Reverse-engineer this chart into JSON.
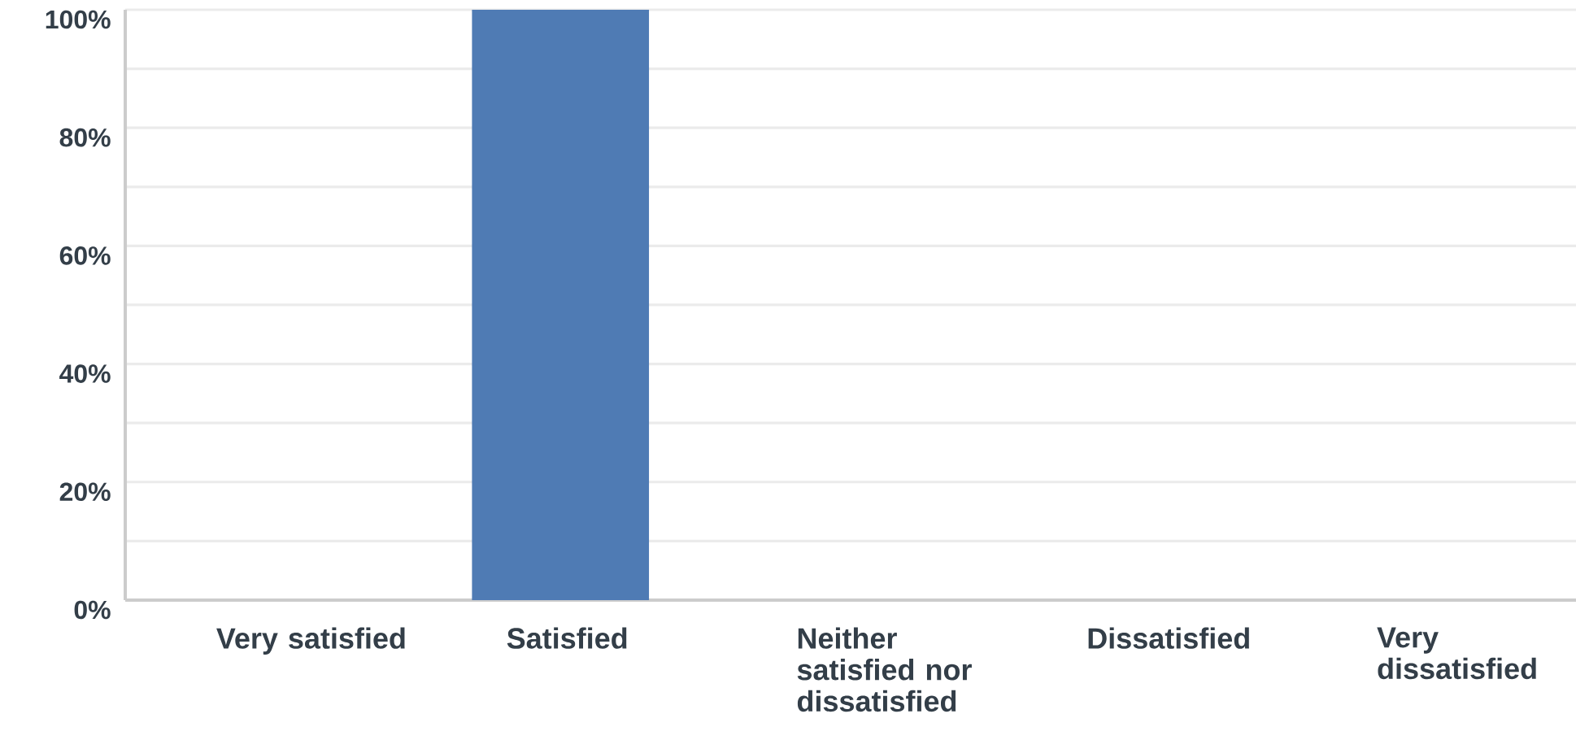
{
  "chart_data": {
    "type": "bar",
    "categories": [
      "Very satisfied",
      "Satisfied",
      "Neither satisfied nor dissatisfied",
      "Dissatisfied",
      "Very dissatisfied"
    ],
    "values": [
      0,
      100,
      0,
      0,
      0
    ],
    "color": "#4f7bb4",
    "ylim": [
      0,
      100
    ],
    "yticks": [
      {
        "value": 0,
        "label": "0%"
      },
      {
        "value": 10,
        "label": null
      },
      {
        "value": 20,
        "label": "20%"
      },
      {
        "value": 30,
        "label": null
      },
      {
        "value": 40,
        "label": "40%"
      },
      {
        "value": 50,
        "label": null
      },
      {
        "value": 60,
        "label": "60%"
      },
      {
        "value": 70,
        "label": null
      },
      {
        "value": 80,
        "label": "80%"
      },
      {
        "value": 90,
        "label": null
      },
      {
        "value": 100,
        "label": "100%"
      }
    ],
    "grid": "y"
  }
}
